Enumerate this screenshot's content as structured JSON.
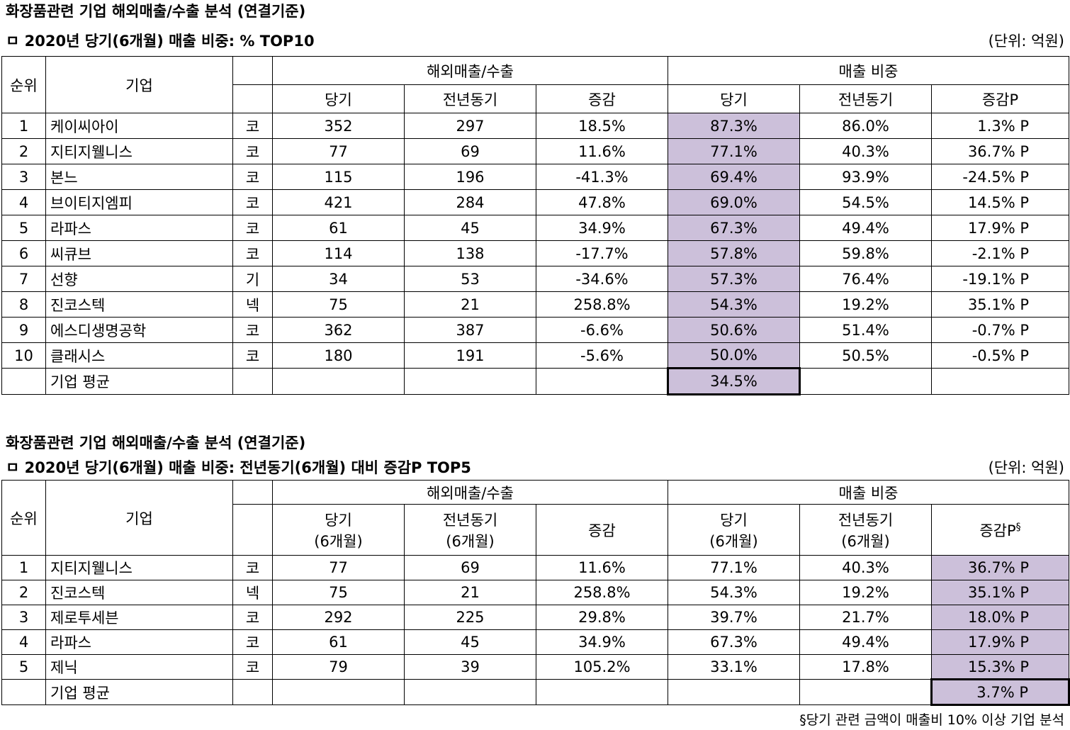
{
  "section1": {
    "title": "화장품관련 기업 해외매출/수출 분석 (연결기준)",
    "subtitle": "ㅁ 2020년 당기(6개월) 매출 비중: % TOP10",
    "unit": "(단위: 억원)",
    "headers": {
      "rank": "순위",
      "company": "기업",
      "group_overseas": "해외매출/수출",
      "group_ratio": "매출 비중",
      "current": "당기",
      "prior": "전년동기",
      "change": "증감",
      "change_p": "증감P"
    },
    "rows": [
      {
        "rank": "1",
        "company": "케이씨아이",
        "market": "코",
        "cur": "352",
        "prior": "297",
        "chg": "18.5%",
        "ratio_cur": "87.3%",
        "ratio_prior": "86.0%",
        "ratio_chg": "1.3% P"
      },
      {
        "rank": "2",
        "company": "지티지웰니스",
        "market": "코",
        "cur": "77",
        "prior": "69",
        "chg": "11.6%",
        "ratio_cur": "77.1%",
        "ratio_prior": "40.3%",
        "ratio_chg": "36.7% P"
      },
      {
        "rank": "3",
        "company": "본느",
        "market": "코",
        "cur": "115",
        "prior": "196",
        "chg": "-41.3%",
        "ratio_cur": "69.4%",
        "ratio_prior": "93.9%",
        "ratio_chg": "-24.5% P"
      },
      {
        "rank": "4",
        "company": "브이티지엠피",
        "market": "코",
        "cur": "421",
        "prior": "284",
        "chg": "47.8%",
        "ratio_cur": "69.0%",
        "ratio_prior": "54.5%",
        "ratio_chg": "14.5% P"
      },
      {
        "rank": "5",
        "company": "라파스",
        "market": "코",
        "cur": "61",
        "prior": "45",
        "chg": "34.9%",
        "ratio_cur": "67.3%",
        "ratio_prior": "49.4%",
        "ratio_chg": "17.9% P"
      },
      {
        "rank": "6",
        "company": "씨큐브",
        "market": "코",
        "cur": "114",
        "prior": "138",
        "chg": "-17.7%",
        "ratio_cur": "57.8%",
        "ratio_prior": "59.8%",
        "ratio_chg": "-2.1% P"
      },
      {
        "rank": "7",
        "company": "선향",
        "market": "기",
        "cur": "34",
        "prior": "53",
        "chg": "-34.6%",
        "ratio_cur": "57.3%",
        "ratio_prior": "76.4%",
        "ratio_chg": "-19.1% P"
      },
      {
        "rank": "8",
        "company": "진코스텍",
        "market": "넥",
        "cur": "75",
        "prior": "21",
        "chg": "258.8%",
        "ratio_cur": "54.3%",
        "ratio_prior": "19.2%",
        "ratio_chg": "35.1% P"
      },
      {
        "rank": "9",
        "company": "에스디생명공학",
        "market": "코",
        "cur": "362",
        "prior": "387",
        "chg": "-6.6%",
        "ratio_cur": "50.6%",
        "ratio_prior": "51.4%",
        "ratio_chg": "-0.7% P"
      },
      {
        "rank": "10",
        "company": "클래시스",
        "market": "코",
        "cur": "180",
        "prior": "191",
        "chg": "-5.6%",
        "ratio_cur": "50.0%",
        "ratio_prior": "50.5%",
        "ratio_chg": "-0.5% P"
      }
    ],
    "average": {
      "label": "기업 평균",
      "value": "34.5%"
    }
  },
  "section2": {
    "title": "화장품관련 기업 해외매출/수출 분석 (연결기준)",
    "subtitle": "ㅁ 2020년 당기(6개월) 매출 비중:  전년동기(6개월) 대비 증감P TOP5",
    "unit": "(단위: 억원)",
    "headers": {
      "rank": "순위",
      "company": "기업",
      "group_overseas": "해외매출/수출",
      "group_ratio": "매출 비중",
      "current": "당기",
      "prior": "전년동기",
      "period": "(6개월)",
      "change": "증감",
      "change_p": "증감P",
      "footnote_mark": "§"
    },
    "rows": [
      {
        "rank": "1",
        "company": "지티지웰니스",
        "market": "코",
        "cur": "77",
        "prior": "69",
        "chg": "11.6%",
        "ratio_cur": "77.1%",
        "ratio_prior": "40.3%",
        "ratio_chg": "36.7% P"
      },
      {
        "rank": "2",
        "company": "진코스텍",
        "market": "넥",
        "cur": "75",
        "prior": "21",
        "chg": "258.8%",
        "ratio_cur": "54.3%",
        "ratio_prior": "19.2%",
        "ratio_chg": "35.1% P"
      },
      {
        "rank": "3",
        "company": "제로투세븐",
        "market": "코",
        "cur": "292",
        "prior": "225",
        "chg": "29.8%",
        "ratio_cur": "39.7%",
        "ratio_prior": "21.7%",
        "ratio_chg": "18.0% P"
      },
      {
        "rank": "4",
        "company": "라파스",
        "market": "코",
        "cur": "61",
        "prior": "45",
        "chg": "34.9%",
        "ratio_cur": "67.3%",
        "ratio_prior": "49.4%",
        "ratio_chg": "17.9% P"
      },
      {
        "rank": "5",
        "company": "제닉",
        "market": "코",
        "cur": "79",
        "prior": "39",
        "chg": "105.2%",
        "ratio_cur": "33.1%",
        "ratio_prior": "17.8%",
        "ratio_chg": "15.3% P"
      }
    ],
    "average": {
      "label": "기업 평균",
      "value": "3.7% P"
    },
    "footnote": "§당기 관련 금액이 매출비 10% 이상 기업 분석"
  }
}
